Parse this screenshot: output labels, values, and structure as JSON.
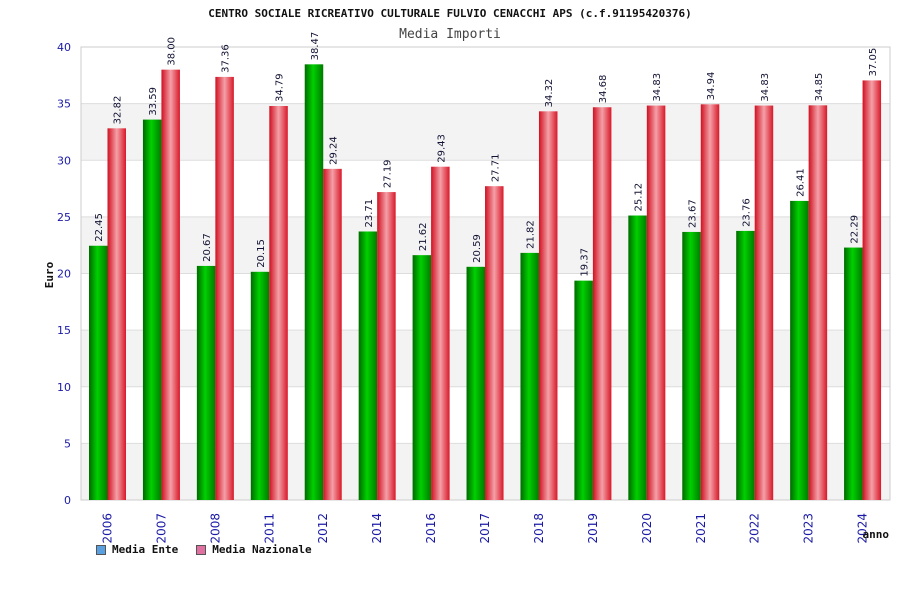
{
  "chart_data": {
    "type": "bar",
    "title": "CENTRO SOCIALE RICREATIVO CULTURALE FULVIO CENACCHI APS (c.f.91195420376)",
    "subtitle": "Media Importi",
    "xlabel": "anno",
    "ylabel": "Euro",
    "ylim": [
      0,
      40
    ],
    "yticks": [
      0,
      5,
      10,
      15,
      20,
      25,
      30,
      35,
      40
    ],
    "grid": true,
    "legend_position": "bottom-left",
    "categories": [
      "2006",
      "2007",
      "2008",
      "2011",
      "2012",
      "2014",
      "2016",
      "2017",
      "2018",
      "2019",
      "2020",
      "2021",
      "2022",
      "2023",
      "2024"
    ],
    "series": [
      {
        "name": "Media Ente",
        "color": "#00a800",
        "legend_color": "#5aa0e0",
        "values": [
          22.45,
          33.59,
          20.67,
          20.15,
          38.47,
          23.71,
          21.62,
          20.59,
          21.82,
          19.37,
          25.12,
          23.67,
          23.76,
          26.41,
          22.29
        ],
        "labels": [
          "22.45",
          "33.59",
          "20.67",
          "20.15",
          "38.47",
          "23.71",
          "21.62",
          "20.59",
          "21.82",
          "19.37",
          "25.12",
          "23.67",
          "23.76",
          "26.41",
          "22.29"
        ]
      },
      {
        "name": "Media Nazionale",
        "color": "#e8202a",
        "legend_color": "#e070a0",
        "values": [
          32.82,
          38.0,
          37.36,
          34.79,
          29.24,
          27.19,
          29.43,
          27.71,
          34.32,
          34.68,
          34.83,
          34.94,
          34.83,
          34.85,
          37.05
        ],
        "labels": [
          "32.82",
          "38.00",
          "37.36",
          "34.79",
          "29.24",
          "27.19",
          "29.43",
          "27.71",
          "34.32",
          "34.68",
          "34.83",
          "34.94",
          "34.83",
          "34.85",
          "37.05"
        ]
      }
    ]
  }
}
